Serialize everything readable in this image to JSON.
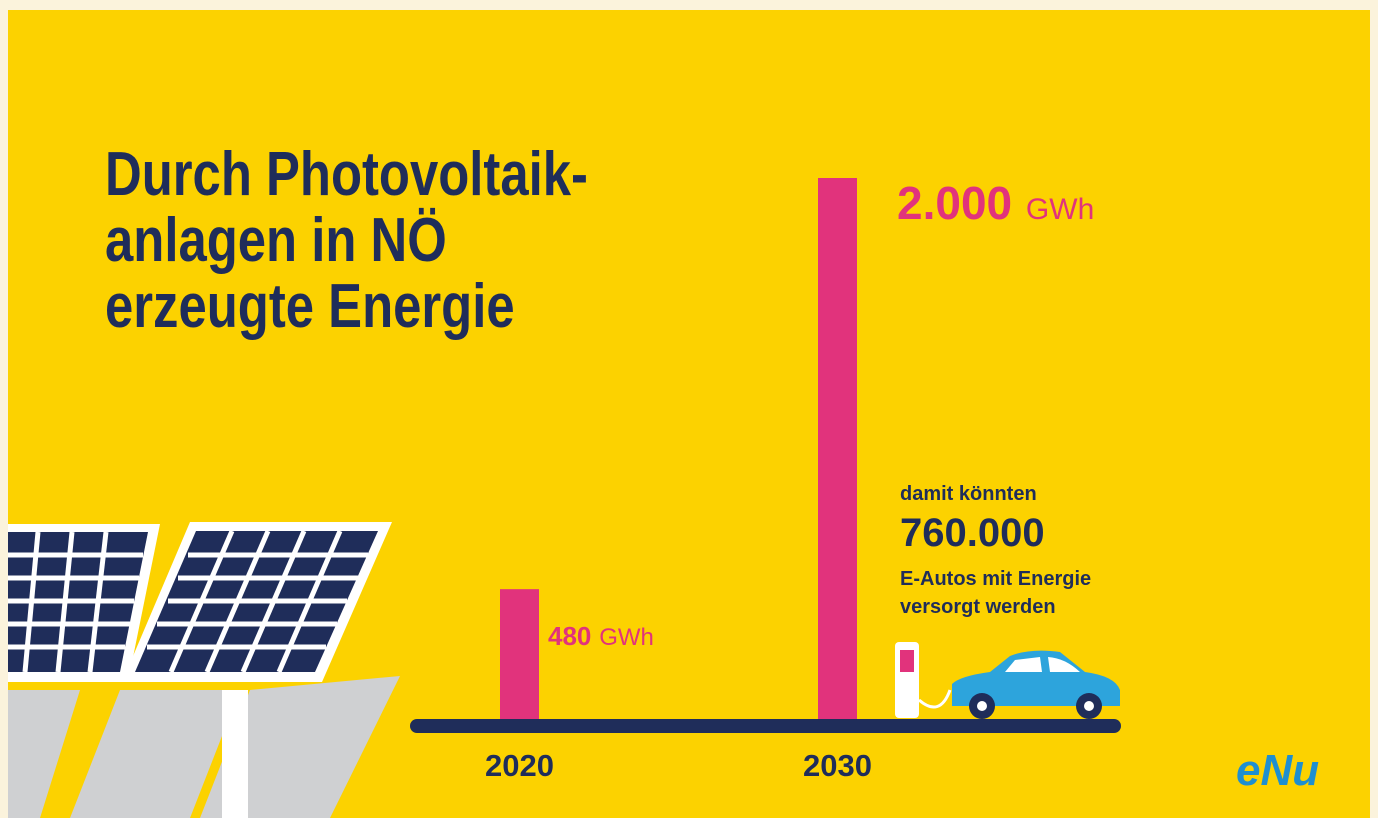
{
  "chart_data": {
    "type": "bar",
    "title": [
      "Durch Photovoltaik-",
      "anlagen in NÖ",
      "erzeugte Energie"
    ],
    "categories": [
      "2020",
      "2030"
    ],
    "values": [
      480,
      2000
    ],
    "value_labels": [
      "480",
      "2.000"
    ],
    "unit": "GWh",
    "color": "#e1337c",
    "annotation": [
      "damit könnten",
      "760.000",
      "E-Autos mit Energie",
      "versorgt werden"
    ],
    "logo": "eNu"
  }
}
